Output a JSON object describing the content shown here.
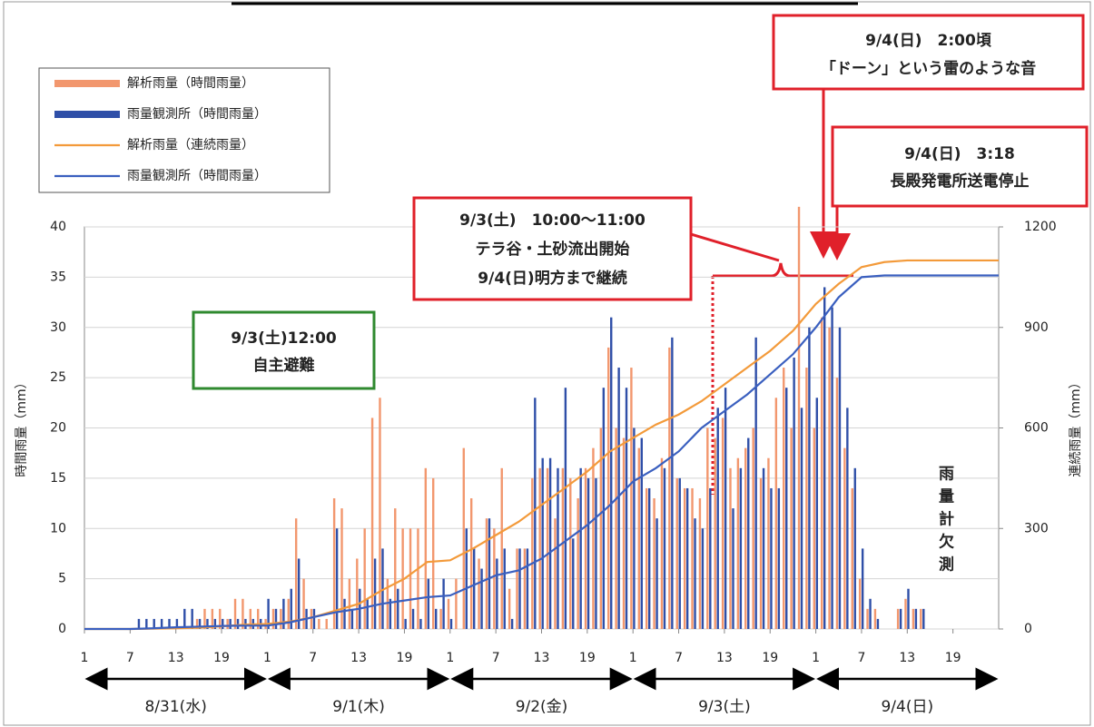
{
  "chart_data": {
    "type": "bar_line",
    "y_label": "時間雨量（mm）",
    "y2_label": "連続雨量（mm）",
    "ylim": [
      0,
      40
    ],
    "yticks": [
      0,
      5,
      10,
      15,
      20,
      25,
      30,
      35,
      40
    ],
    "y2lim": [
      0,
      1200
    ],
    "y2ticks": [
      0,
      300,
      600,
      900,
      1200
    ],
    "xlim": [
      0,
      120
    ],
    "xticks": [
      {
        "value": 0,
        "label": "1"
      },
      {
        "value": 6,
        "label": "7"
      },
      {
        "value": 12,
        "label": "13"
      },
      {
        "value": 18,
        "label": "19"
      },
      {
        "value": 24,
        "label": "1"
      },
      {
        "value": 30,
        "label": "7"
      },
      {
        "value": 36,
        "label": "13"
      },
      {
        "value": 42,
        "label": "19"
      },
      {
        "value": 48,
        "label": "1"
      },
      {
        "value": 54,
        "label": "7"
      },
      {
        "value": 60,
        "label": "13"
      },
      {
        "value": 66,
        "label": "19"
      },
      {
        "value": 72,
        "label": "1"
      },
      {
        "value": 78,
        "label": "7"
      },
      {
        "value": 84,
        "label": "13"
      },
      {
        "value": 90,
        "label": "19"
      },
      {
        "value": 96,
        "label": "1"
      },
      {
        "value": 102,
        "label": "7"
      },
      {
        "value": 108,
        "label": "13"
      },
      {
        "value": 114,
        "label": "19"
      }
    ],
    "days": [
      "8/31(水)",
      "9/1(木)",
      "9/2(金)",
      "9/3(土)",
      "9/4(日)"
    ],
    "grid": true,
    "x": [
      0,
      1,
      2,
      3,
      4,
      5,
      6,
      7,
      8,
      9,
      10,
      11,
      12,
      13,
      14,
      15,
      16,
      17,
      18,
      19,
      20,
      21,
      22,
      23,
      24,
      25,
      26,
      27,
      28,
      29,
      30,
      31,
      32,
      33,
      34,
      35,
      36,
      37,
      38,
      39,
      40,
      41,
      42,
      43,
      44,
      45,
      46,
      47,
      48,
      49,
      50,
      51,
      52,
      53,
      54,
      55,
      56,
      57,
      58,
      59,
      60,
      61,
      62,
      63,
      64,
      65,
      66,
      67,
      68,
      69,
      70,
      71,
      72,
      73,
      74,
      75,
      76,
      77,
      78,
      79,
      80,
      81,
      82,
      83,
      84,
      85,
      86,
      87,
      88,
      89,
      90,
      91,
      92,
      93,
      94,
      95,
      96,
      97,
      98,
      99,
      100,
      101,
      102,
      103,
      104,
      105,
      106,
      107,
      108,
      109,
      110,
      111,
      112,
      113,
      114,
      115,
      116,
      117,
      118,
      119
    ],
    "series": [
      {
        "name": "解析雨量（時間雨量）",
        "kind": "bar",
        "color": "#f2976e",
        "values": [
          0,
          0,
          0,
          0,
          0,
          0,
          0,
          0,
          0,
          0,
          0,
          0,
          0,
          0,
          0,
          1,
          2,
          2,
          2,
          1,
          3,
          3,
          2,
          2,
          1,
          2,
          2,
          3,
          11,
          5,
          2,
          1,
          1,
          13,
          12,
          5,
          7,
          10,
          21,
          23,
          5,
          12,
          10,
          10,
          10,
          16,
          15,
          2,
          3,
          5,
          18,
          13,
          7,
          11,
          10,
          16,
          4,
          8,
          8,
          15,
          16,
          16,
          11,
          16,
          15,
          13,
          16,
          18,
          20,
          28,
          20,
          19,
          26,
          18,
          14,
          13,
          17,
          28,
          15,
          14,
          14,
          13,
          20,
          19,
          21,
          16,
          17,
          18,
          20,
          15,
          17,
          23,
          26,
          20,
          42,
          26,
          20,
          31,
          30,
          25,
          18,
          14,
          5,
          2,
          2,
          0,
          0,
          2,
          3,
          2,
          2,
          0,
          0,
          0,
          0,
          0,
          0,
          0,
          0,
          0
        ]
      },
      {
        "name": "雨量観測所（時間雨量）",
        "kind": "bar",
        "color": "#2f4fa8",
        "values": [
          0,
          0,
          0,
          0,
          0,
          0,
          0,
          1,
          1,
          1,
          1,
          1,
          1,
          2,
          2,
          1,
          1,
          1,
          1,
          1,
          1,
          1,
          1,
          1,
          3,
          2,
          3,
          4,
          7,
          2,
          2,
          0,
          0,
          10,
          3,
          2,
          4,
          3,
          7,
          8,
          3,
          4,
          1,
          2,
          1,
          5,
          2,
          5,
          1,
          0,
          10,
          8,
          6,
          11,
          7,
          8,
          1,
          8,
          8,
          23,
          17,
          17,
          16,
          24,
          9,
          16,
          15,
          15,
          24,
          31,
          26,
          24,
          20,
          19,
          14,
          11,
          16,
          29,
          15,
          14,
          11,
          10,
          14,
          22,
          24,
          12,
          16,
          19,
          29,
          16,
          14,
          14,
          24,
          27,
          22,
          30,
          23,
          34,
          32,
          30,
          22,
          16,
          8,
          3,
          1,
          0,
          0,
          2,
          4,
          2,
          2,
          0,
          0,
          0,
          0,
          0,
          0,
          0,
          0,
          0
        ]
      },
      {
        "name": "解析雨量（連続雨量）",
        "kind": "line",
        "axis": "y2",
        "color": "#f39a3a",
        "x": [
          0,
          3,
          6,
          9,
          12,
          15,
          18,
          21,
          24,
          27,
          30,
          33,
          36,
          39,
          42,
          45,
          48,
          51,
          54,
          57,
          60,
          63,
          66,
          69,
          72,
          75,
          78,
          81,
          84,
          87,
          90,
          93,
          96,
          99,
          102,
          105,
          108,
          111,
          114,
          117,
          120
        ],
        "values": [
          0,
          0,
          0,
          1,
          2,
          4,
          8,
          13,
          15,
          22,
          35,
          55,
          75,
          115,
          150,
          200,
          205,
          240,
          280,
          320,
          370,
          420,
          470,
          530,
          570,
          610,
          640,
          680,
          730,
          780,
          830,
          890,
          970,
          1030,
          1080,
          1095,
          1100,
          1100,
          1100,
          1100,
          1100
        ]
      },
      {
        "name": "雨量観測所（時間雨量）",
        "kind": "line",
        "axis": "y2",
        "color": "#3a5fbf",
        "x": [
          0,
          3,
          6,
          9,
          12,
          15,
          18,
          21,
          24,
          27,
          30,
          33,
          36,
          39,
          42,
          45,
          48,
          51,
          54,
          57,
          60,
          63,
          66,
          69,
          72,
          75,
          78,
          81,
          84,
          87,
          90,
          93,
          96,
          99,
          102,
          105,
          108,
          111,
          114,
          117,
          120
        ],
        "values": [
          0,
          0,
          0,
          2,
          5,
          7,
          9,
          10,
          10,
          20,
          35,
          50,
          60,
          75,
          85,
          95,
          100,
          130,
          160,
          175,
          210,
          260,
          310,
          370,
          440,
          480,
          530,
          600,
          650,
          700,
          760,
          820,
          900,
          990,
          1050,
          1055,
          1055,
          1055,
          1055,
          1055,
          1055
        ]
      }
    ],
    "annotations": [
      {
        "lines": [
          "9/4(日)　2:00頃",
          "「ドーン」という雷のような音"
        ]
      },
      {
        "lines": [
          "9/4(日)　3:18",
          "長殿発電所送電停止"
        ]
      },
      {
        "lines": [
          "9/3(土)　10:00～11:00",
          "テラ谷・土砂流出開始",
          "9/4(日)明方まで継続"
        ]
      },
      {
        "lines": [
          "9/3(土)12:00",
          "自主避難"
        ]
      }
    ],
    "missing_note": "雨量計欠測"
  }
}
